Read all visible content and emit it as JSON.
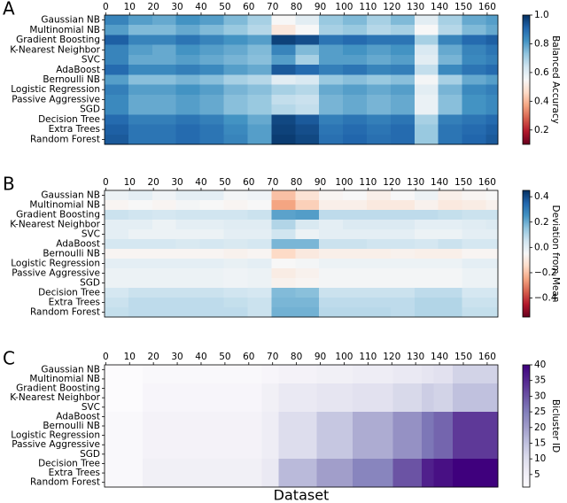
{
  "chart_data": [
    {
      "type": "heatmap",
      "panel_label": "A",
      "rows": [
        "Gaussian NB",
        "Multinomial NB",
        "Gradient Boosting",
        "K-Nearest Neighbor",
        "SVC",
        "AdaBoost",
        "Bernoulli NB",
        "Logistic Regression",
        "Passive Aggressive",
        "SGD",
        "Decision Tree",
        "Extra Trees",
        "Random Forest"
      ],
      "xbins": [
        -0.5,
        9.5,
        19.5,
        29.5,
        39.5,
        49.5,
        59.5,
        69.5,
        79.5,
        89.5,
        99.5,
        109.5,
        119.5,
        129.5,
        139.5,
        149.5,
        159.5,
        164.5
      ],
      "xlim": [
        -0.5,
        164.5
      ],
      "xticks": [
        0,
        10,
        20,
        30,
        40,
        50,
        60,
        70,
        80,
        90,
        100,
        110,
        120,
        130,
        140,
        150,
        160
      ],
      "values": [
        [
          0.85,
          0.8,
          0.78,
          0.82,
          0.8,
          0.75,
          0.7,
          0.55,
          0.6,
          0.72,
          0.75,
          0.7,
          0.75,
          0.6,
          0.7,
          0.78,
          0.8
        ],
        [
          0.8,
          0.75,
          0.75,
          0.78,
          0.75,
          0.72,
          0.68,
          0.5,
          0.55,
          0.7,
          0.72,
          0.68,
          0.7,
          0.55,
          0.68,
          0.75,
          0.78
        ],
        [
          0.92,
          0.85,
          0.85,
          0.88,
          0.85,
          0.82,
          0.8,
          0.97,
          0.95,
          0.88,
          0.9,
          0.88,
          0.88,
          0.7,
          0.85,
          0.9,
          0.92
        ],
        [
          0.85,
          0.8,
          0.78,
          0.82,
          0.8,
          0.78,
          0.75,
          0.85,
          0.75,
          0.8,
          0.82,
          0.8,
          0.82,
          0.62,
          0.78,
          0.85,
          0.88
        ],
        [
          0.85,
          0.78,
          0.78,
          0.8,
          0.78,
          0.76,
          0.74,
          0.8,
          0.7,
          0.8,
          0.8,
          0.78,
          0.8,
          0.6,
          0.76,
          0.84,
          0.86
        ],
        [
          0.9,
          0.84,
          0.84,
          0.86,
          0.84,
          0.8,
          0.78,
          0.93,
          0.9,
          0.86,
          0.88,
          0.85,
          0.86,
          0.66,
          0.84,
          0.88,
          0.9
        ],
        [
          0.8,
          0.74,
          0.74,
          0.76,
          0.74,
          0.7,
          0.68,
          0.6,
          0.62,
          0.72,
          0.74,
          0.72,
          0.74,
          0.56,
          0.7,
          0.78,
          0.8
        ],
        [
          0.86,
          0.8,
          0.8,
          0.82,
          0.8,
          0.76,
          0.74,
          0.7,
          0.68,
          0.78,
          0.8,
          0.78,
          0.8,
          0.6,
          0.76,
          0.84,
          0.86
        ],
        [
          0.84,
          0.78,
          0.78,
          0.8,
          0.78,
          0.74,
          0.72,
          0.66,
          0.65,
          0.76,
          0.78,
          0.76,
          0.78,
          0.58,
          0.74,
          0.82,
          0.84
        ],
        [
          0.84,
          0.78,
          0.78,
          0.8,
          0.78,
          0.74,
          0.72,
          0.68,
          0.66,
          0.76,
          0.78,
          0.76,
          0.78,
          0.58,
          0.74,
          0.82,
          0.84
        ],
        [
          0.9,
          0.86,
          0.86,
          0.88,
          0.86,
          0.82,
          0.78,
          0.96,
          0.93,
          0.86,
          0.88,
          0.86,
          0.88,
          0.7,
          0.86,
          0.88,
          0.9
        ],
        [
          0.92,
          0.88,
          0.88,
          0.9,
          0.88,
          0.84,
          0.8,
          0.97,
          0.95,
          0.88,
          0.9,
          0.88,
          0.9,
          0.72,
          0.88,
          0.9,
          0.92
        ],
        [
          0.93,
          0.88,
          0.88,
          0.9,
          0.88,
          0.85,
          0.8,
          0.98,
          0.96,
          0.89,
          0.91,
          0.89,
          0.9,
          0.72,
          0.88,
          0.91,
          0.93
        ]
      ],
      "colorbar": {
        "label": "Balanced Accuracy",
        "lim": [
          0.1,
          1
        ],
        "colormap": "RdBu",
        "ticks": [
          0.2,
          0.4,
          0.6,
          0.8,
          {
            "value": 1,
            "label": "1.0"
          }
        ]
      }
    },
    {
      "type": "heatmap",
      "panel_label": "B",
      "rows": [
        "Gaussian NB",
        "Multinomial NB",
        "Gradient Boosting",
        "K-Nearest Neighbor",
        "SVC",
        "AdaBoost",
        "Bernoulli NB",
        "Logistic Regression",
        "Passive Aggressive",
        "SGD",
        "Decision Tree",
        "Extra Trees",
        "Random Forest"
      ],
      "xbins": [
        -0.5,
        9.5,
        19.5,
        29.5,
        39.5,
        49.5,
        59.5,
        69.5,
        79.5,
        89.5,
        99.5,
        109.5,
        119.5,
        129.5,
        139.5,
        149.5,
        159.5,
        164.5
      ],
      "xlim": [
        -0.5,
        164.5
      ],
      "xticks": [
        0,
        10,
        20,
        30,
        40,
        50,
        60,
        70,
        80,
        90,
        100,
        110,
        120,
        130,
        140,
        150,
        160
      ],
      "values": [
        [
          -0.02,
          0,
          -0.03,
          0,
          0,
          -0.04,
          -0.03,
          -0.2,
          -0.12,
          -0.06,
          -0.05,
          -0.08,
          -0.05,
          -0.02,
          -0.08,
          -0.06,
          -0.05
        ],
        [
          -0.06,
          -0.05,
          -0.06,
          -0.04,
          -0.05,
          -0.06,
          -0.05,
          -0.25,
          -0.17,
          -0.08,
          -0.08,
          -0.1,
          -0.1,
          -0.07,
          -0.1,
          -0.09,
          -0.07
        ],
        [
          0.06,
          0.05,
          0.04,
          0.05,
          0.05,
          0.05,
          0.06,
          0.22,
          0.23,
          0.08,
          0.08,
          0.08,
          0.08,
          0.08,
          0.07,
          0.06,
          0.06
        ],
        [
          0,
          0,
          -0.02,
          0,
          0,
          0.01,
          0.01,
          0.1,
          0.03,
          0,
          0.02,
          0.02,
          0.02,
          0,
          0,
          0.01,
          0.02
        ],
        [
          0,
          -0.02,
          -0.02,
          -0.02,
          -0.02,
          0,
          0,
          0.05,
          -0.02,
          0,
          0,
          0,
          0,
          -0.02,
          -0.02,
          0,
          0
        ],
        [
          0.04,
          0.04,
          0.04,
          0.03,
          0.04,
          0.03,
          0.04,
          0.18,
          0.18,
          0.06,
          0.06,
          0.05,
          0.05,
          0.04,
          0.06,
          0.04,
          0.04
        ],
        [
          -0.06,
          -0.06,
          -0.06,
          -0.06,
          -0.06,
          -0.07,
          -0.06,
          -0.15,
          -0.1,
          -0.08,
          -0.08,
          -0.08,
          -0.07,
          -0.08,
          -0.08,
          -0.06,
          -0.06
        ],
        [
          0,
          0,
          0,
          0,
          0,
          -0.01,
          0,
          -0.05,
          -0.04,
          -0.02,
          -0.02,
          -0.02,
          -0.02,
          -0.02,
          -0.02,
          0,
          0
        ],
        [
          -0.02,
          -0.02,
          -0.02,
          -0.02,
          -0.02,
          -0.03,
          -0.02,
          -0.09,
          -0.07,
          -0.04,
          -0.04,
          -0.04,
          -0.04,
          -0.04,
          -0.04,
          -0.02,
          -0.02
        ],
        [
          -0.02,
          -0.02,
          -0.02,
          -0.02,
          -0.02,
          -0.03,
          -0.02,
          -0.07,
          -0.06,
          -0.04,
          -0.04,
          -0.04,
          -0.04,
          -0.04,
          -0.04,
          -0.02,
          -0.02
        ],
        [
          0.04,
          0.06,
          0.06,
          0.06,
          0.06,
          0.05,
          0.04,
          0.17,
          0.16,
          0.06,
          0.06,
          0.06,
          0.06,
          0.08,
          0.08,
          0.04,
          0.04
        ],
        [
          0.06,
          0.08,
          0.08,
          0.08,
          0.08,
          0.07,
          0.06,
          0.18,
          0.18,
          0.08,
          0.08,
          0.08,
          0.08,
          0.1,
          0.1,
          0.06,
          0.06
        ],
        [
          0.07,
          0.08,
          0.08,
          0.08,
          0.08,
          0.08,
          0.06,
          0.19,
          0.19,
          0.09,
          0.09,
          0.09,
          0.08,
          0.1,
          0.1,
          0.07,
          0.07
        ]
      ],
      "colorbar": {
        "label": "Deviation from Mean",
        "lim": [
          -0.55,
          0.45
        ],
        "colormap": "RdBu",
        "ticks": [
          {
            "value": -0.4,
            "label": "−0.4"
          },
          {
            "value": -0.2,
            "label": "−0.2"
          },
          {
            "value": 0,
            "label": "0.0"
          },
          0.2,
          0.4
        ]
      }
    },
    {
      "type": "heatmap",
      "panel_label": "C",
      "xlabel": "Dataset",
      "rows": [
        "Gaussian NB",
        "Multinomial NB",
        "Gradient Boosting",
        "K-Nearest Neighbor",
        "SVC",
        "AdaBoost",
        "Bernoulli NB",
        "Logistic Regression",
        "Passive Aggressive",
        "SGD",
        "Decision Tree",
        "Extra Trees",
        "Random Forest"
      ],
      "xbins": [
        -0.5,
        15.5,
        65.5,
        72.5,
        88.5,
        103.5,
        120.5,
        132.5,
        137.5,
        145.5,
        164.5
      ],
      "xlim": [
        -0.5,
        164.5
      ],
      "xticks": [
        0,
        10,
        20,
        30,
        40,
        50,
        60,
        70,
        80,
        90,
        100,
        110,
        120,
        130,
        140,
        150,
        160
      ],
      "values": [
        [
          1,
          2,
          3,
          4,
          5,
          6,
          7,
          8,
          9,
          12
        ],
        [
          1,
          2,
          3,
          4,
          5,
          6,
          7,
          8,
          9,
          12
        ],
        [
          1,
          3,
          5,
          7,
          8,
          9,
          11,
          13,
          12,
          15
        ],
        [
          1,
          3,
          5,
          7,
          8,
          9,
          11,
          13,
          12,
          15
        ],
        [
          1,
          3,
          5,
          7,
          8,
          9,
          11,
          13,
          12,
          15
        ],
        [
          2,
          4,
          6,
          10,
          14,
          18,
          22,
          26,
          28,
          33
        ],
        [
          2,
          4,
          6,
          10,
          14,
          18,
          22,
          26,
          28,
          33
        ],
        [
          2,
          4,
          6,
          10,
          14,
          18,
          22,
          26,
          28,
          33
        ],
        [
          2,
          4,
          6,
          10,
          14,
          18,
          22,
          26,
          28,
          33
        ],
        [
          2,
          4,
          6,
          10,
          14,
          18,
          22,
          26,
          28,
          33
        ],
        [
          2,
          5,
          7,
          16,
          20,
          24,
          30,
          36,
          38,
          40
        ],
        [
          2,
          5,
          7,
          16,
          20,
          24,
          30,
          36,
          38,
          40
        ],
        [
          2,
          5,
          7,
          16,
          20,
          24,
          30,
          36,
          38,
          40
        ]
      ],
      "colorbar": {
        "label": "Bicluster ID",
        "lim": [
          1,
          40
        ],
        "colormap": "Purples",
        "ticks": [
          5,
          10,
          15,
          20,
          25,
          30,
          35,
          40
        ]
      }
    }
  ]
}
